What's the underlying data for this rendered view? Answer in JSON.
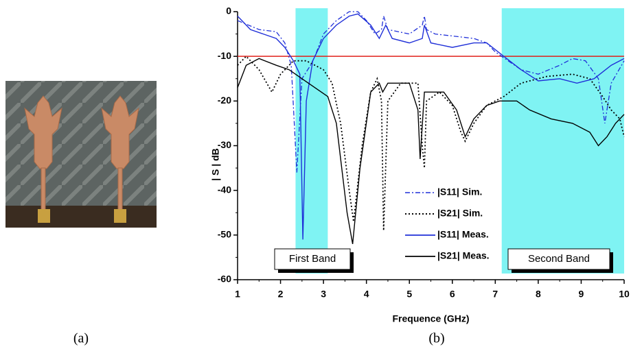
{
  "captions": [
    "(a)",
    "(b)"
  ],
  "chart_data": {
    "type": "line",
    "xlabel": "Frequence (GHz)",
    "ylabel": "| S | dB",
    "xlim": [
      1,
      10
    ],
    "xticks": [
      1,
      2,
      3,
      4,
      5,
      6,
      7,
      8,
      9,
      10
    ],
    "ylim": [
      -60,
      0
    ],
    "yticks": [
      0,
      -10,
      -20,
      -30,
      -40,
      -50,
      -60
    ],
    "hline": -10,
    "hline_color": "#e0201a",
    "bands": [
      {
        "label": "First Band",
        "x": [
          2.35,
          3.1
        ]
      },
      {
        "label": "Second Band",
        "x": [
          7.15,
          10
        ]
      }
    ],
    "band_color": "#7ff3f3",
    "series": [
      {
        "name": "|S11| Sim.",
        "color": "#1f2fd8",
        "style": "dashdot",
        "x": [
          1,
          1.5,
          1.9,
          2.1,
          2.25,
          2.38,
          2.5,
          2.7,
          2.8,
          3.0,
          3.3,
          3.6,
          3.8,
          4.0,
          4.2,
          4.35,
          4.4,
          4.5,
          5.0,
          5.3,
          5.35,
          5.4,
          5.6,
          6.5,
          6.8,
          7.0,
          7.3,
          7.6,
          8.0,
          8.5,
          8.8,
          9.1,
          9.4,
          9.55,
          9.7,
          10
        ],
        "values": [
          -2,
          -4,
          -4.5,
          -7,
          -12,
          -36,
          -15,
          -12,
          -10,
          -5,
          -2,
          0,
          0,
          -2,
          -5,
          -4,
          -1,
          -4,
          -5,
          -3,
          -1,
          -4,
          -5,
          -6,
          -7,
          -9,
          -11,
          -13,
          -14,
          -12,
          -10.5,
          -11,
          -15,
          -25,
          -16,
          -11
        ]
      },
      {
        "name": "|S21| Sim.",
        "color": "#000000",
        "style": "dotted",
        "x": [
          1,
          1.2,
          1.5,
          1.8,
          2.0,
          2.3,
          2.6,
          3.0,
          3.2,
          3.4,
          3.6,
          3.7,
          3.9,
          4.1,
          4.25,
          4.35,
          4.4,
          4.5,
          4.8,
          5.2,
          5.3,
          5.35,
          5.4,
          5.7,
          6.0,
          6.2,
          6.3,
          6.5,
          6.8,
          7.2,
          7.6,
          8.2,
          8.8,
          9.2,
          9.5,
          9.7,
          9.9,
          10
        ],
        "values": [
          -12,
          -10,
          -13,
          -18,
          -14,
          -11,
          -11,
          -13,
          -16,
          -25,
          -40,
          -47,
          -30,
          -18,
          -15,
          -20,
          -49,
          -20,
          -16,
          -16,
          -30,
          -35,
          -20,
          -18,
          -21,
          -27,
          -29,
          -25,
          -21,
          -19,
          -16,
          -14.5,
          -14,
          -15,
          -19,
          -22,
          -24,
          -28
        ]
      },
      {
        "name": "|S11| Meas.",
        "color": "#1f2fd8",
        "style": "solid",
        "x": [
          1,
          1.3,
          1.6,
          1.9,
          2.1,
          2.3,
          2.45,
          2.52,
          2.6,
          2.75,
          3.0,
          3.3,
          3.6,
          3.8,
          4.1,
          4.3,
          4.45,
          4.6,
          5.0,
          5.3,
          5.35,
          5.5,
          6.0,
          6.5,
          6.8,
          7.2,
          7.6,
          8.0,
          8.5,
          8.9,
          9.3,
          9.7,
          10
        ],
        "values": [
          -1,
          -4,
          -5,
          -6,
          -8,
          -11,
          -14,
          -51,
          -20,
          -11,
          -6,
          -3,
          -1,
          -0.5,
          -3,
          -6,
          -3,
          -6,
          -7,
          -6,
          -3,
          -7,
          -8,
          -7,
          -7,
          -10,
          -13,
          -15.5,
          -15,
          -16,
          -15,
          -12,
          -10.5
        ]
      },
      {
        "name": "|S21| Meas.",
        "color": "#000000",
        "style": "solid",
        "x": [
          1,
          1.2,
          1.5,
          1.9,
          2.2,
          2.5,
          2.8,
          3.1,
          3.3,
          3.55,
          3.68,
          3.85,
          4.1,
          4.3,
          4.38,
          4.5,
          5.0,
          5.2,
          5.25,
          5.35,
          5.8,
          6.1,
          6.3,
          6.5,
          6.8,
          7.1,
          7.5,
          7.8,
          8.3,
          8.8,
          9.2,
          9.4,
          9.6,
          9.8,
          10
        ],
        "values": [
          -17,
          -12,
          -10.5,
          -12,
          -13,
          -15,
          -17,
          -19,
          -25,
          -45,
          -52,
          -35,
          -18,
          -16,
          -18,
          -16,
          -16,
          -22,
          -33,
          -18,
          -18,
          -22,
          -28,
          -24,
          -21,
          -20,
          -20,
          -22,
          -24,
          -25,
          -27,
          -30,
          -28,
          -25,
          -23
        ]
      }
    ]
  }
}
